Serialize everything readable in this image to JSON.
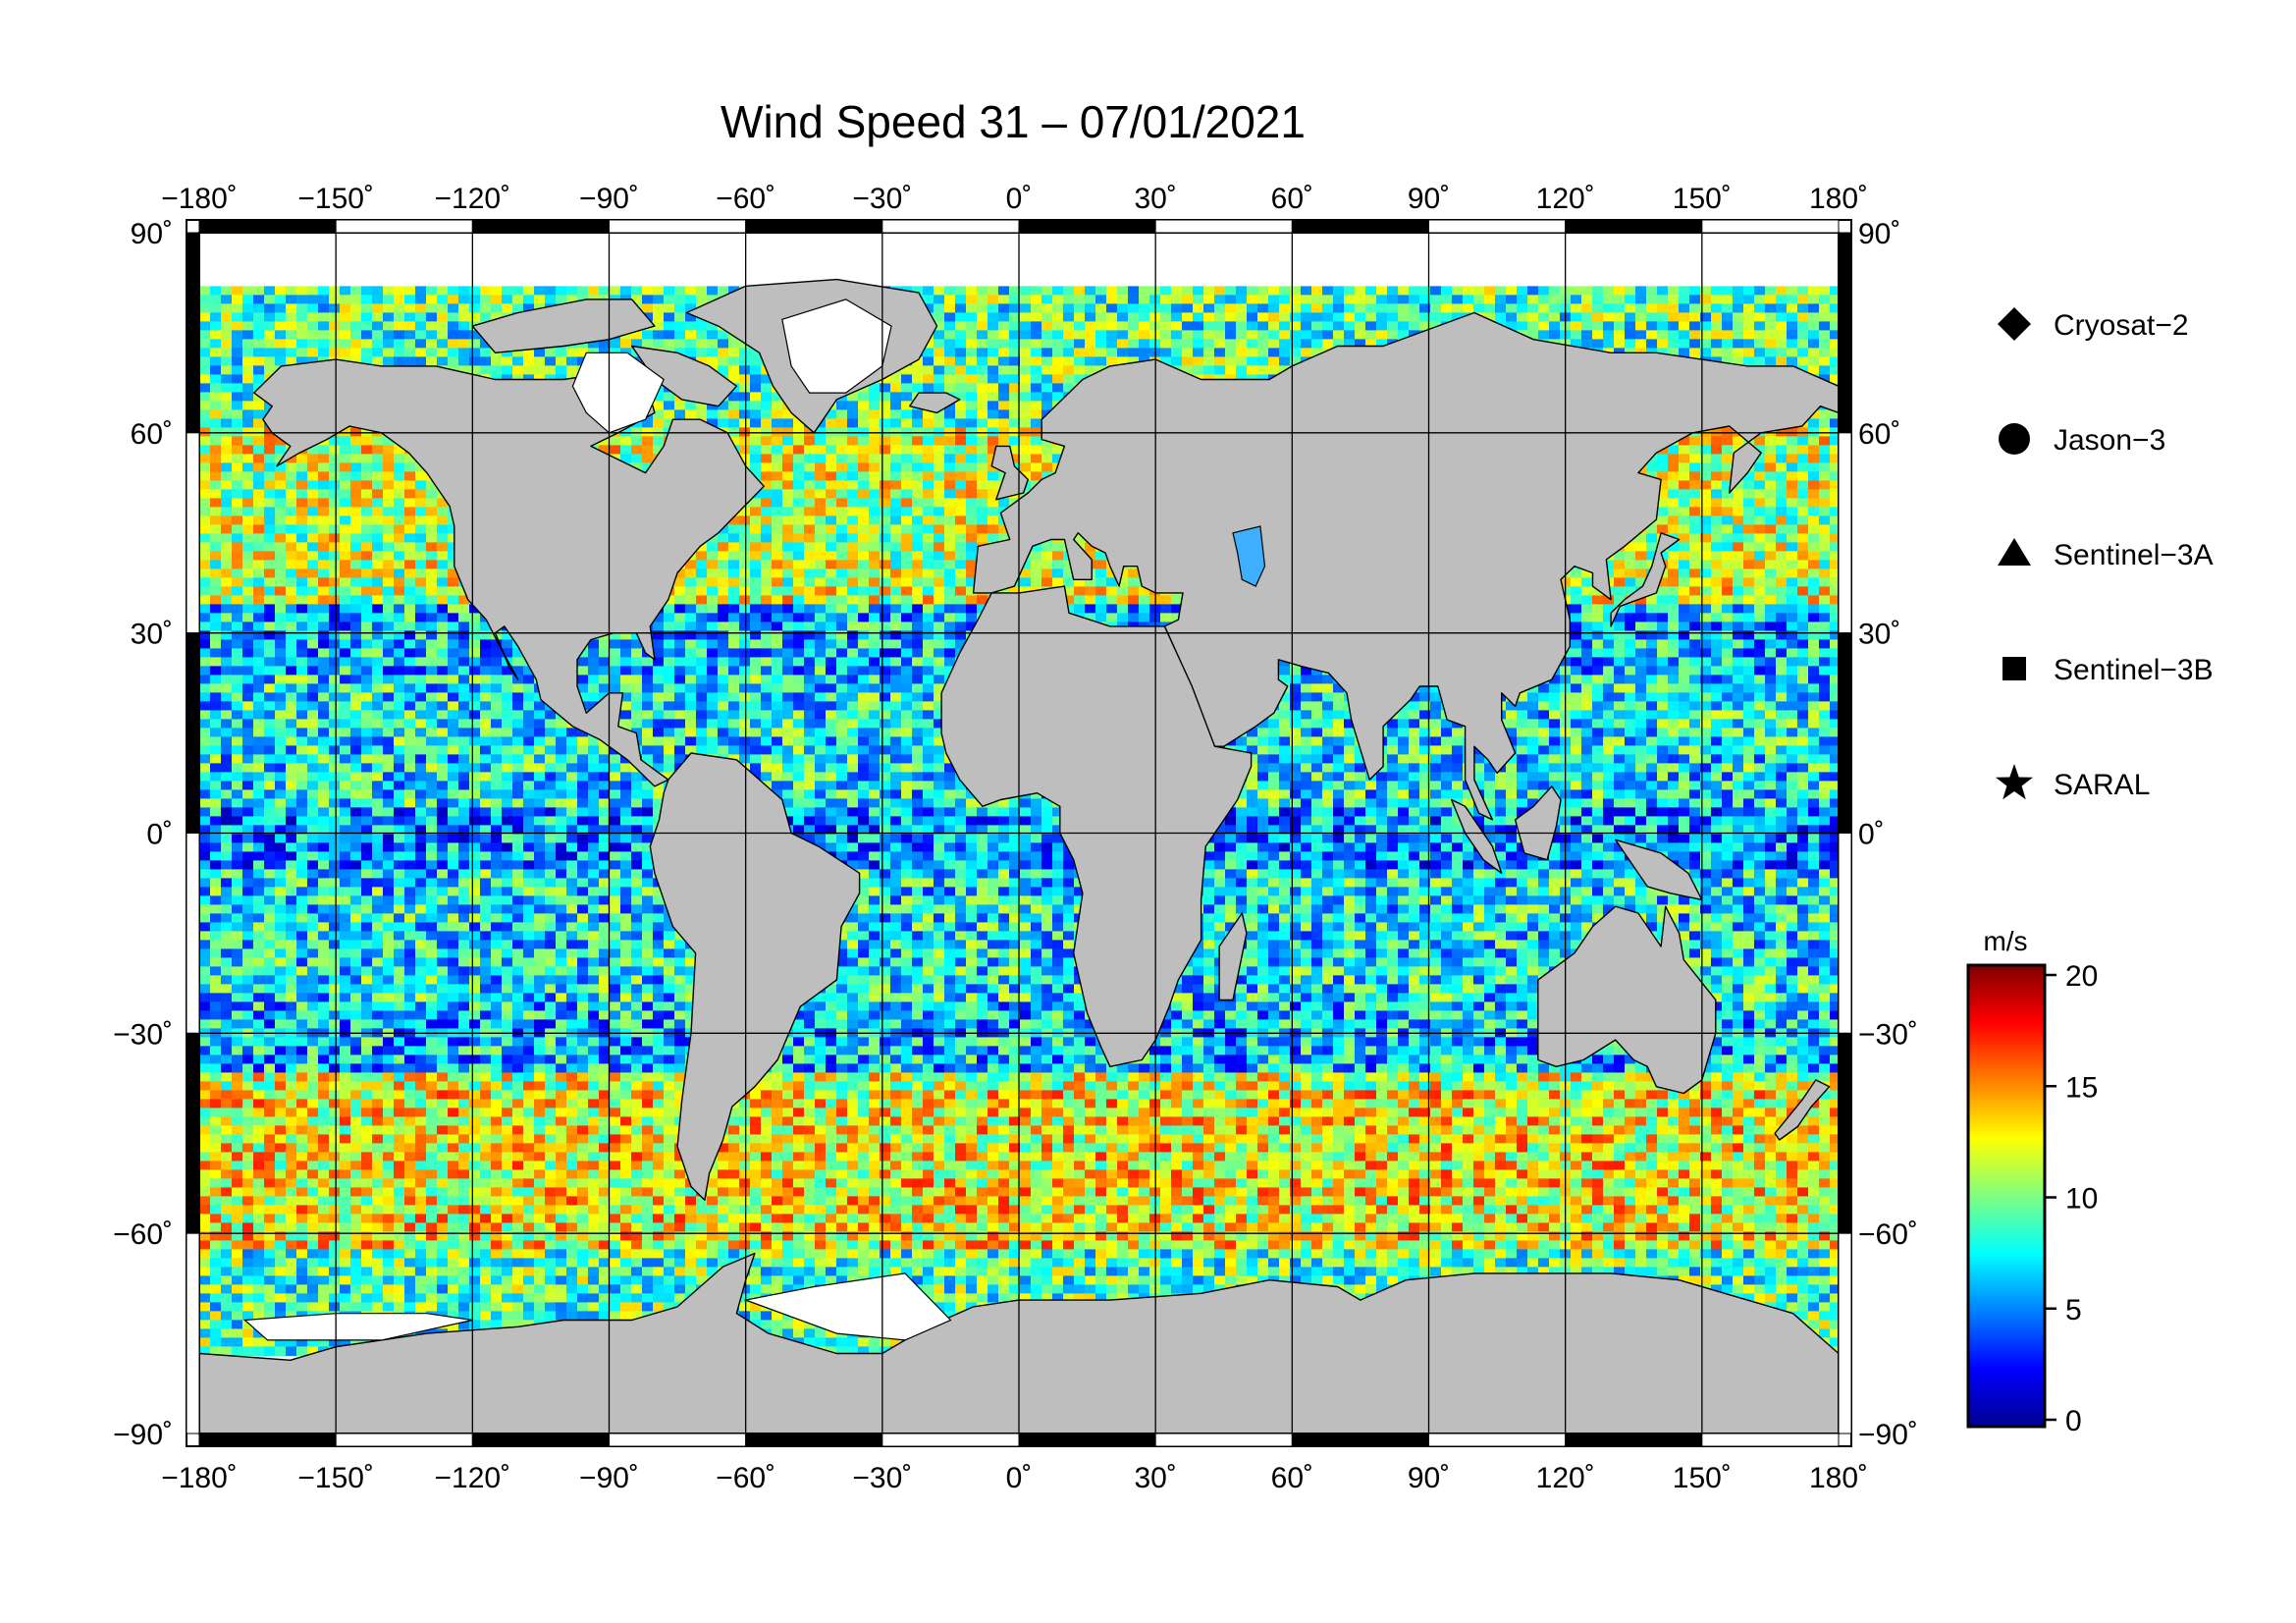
{
  "title": "Wind Speed 31 – 07/01/2021",
  "map": {
    "lon_ticks": [
      "−180˚",
      "−150˚",
      "−120˚",
      "−90˚",
      "−60˚",
      "−30˚",
      "0˚",
      "30˚",
      "60˚",
      "90˚",
      "120˚",
      "150˚",
      "180˚"
    ],
    "lat_ticks": [
      "90˚",
      "60˚",
      "30˚",
      "0˚",
      "−30˚",
      "−60˚",
      "−90˚"
    ],
    "lon_range": [
      -180,
      180
    ],
    "lat_range": [
      -90,
      90
    ],
    "grid_step_deg": 30,
    "land_color": "#bebebe",
    "no_data_color": "#ffffff",
    "coast_color": "#000000"
  },
  "legend": {
    "satellites": [
      {
        "name": "Cryosat−2",
        "marker": "diamond"
      },
      {
        "name": "Jason−3",
        "marker": "circle"
      },
      {
        "name": "Sentinel−3A",
        "marker": "triangle"
      },
      {
        "name": "Sentinel−3B",
        "marker": "square"
      },
      {
        "name": "SARAL",
        "marker": "star"
      }
    ]
  },
  "colorbar": {
    "unit": "m/s",
    "min": 0,
    "max": 20,
    "ticks": [
      "0",
      "5",
      "10",
      "15",
      "20"
    ],
    "tick_values": [
      0,
      5,
      10,
      15,
      20
    ],
    "colormap": "jet",
    "colors": [
      "#00008f",
      "#0000ff",
      "#0080ff",
      "#00ffff",
      "#80ff80",
      "#ffff00",
      "#ff8000",
      "#ff0000",
      "#800000"
    ]
  }
}
